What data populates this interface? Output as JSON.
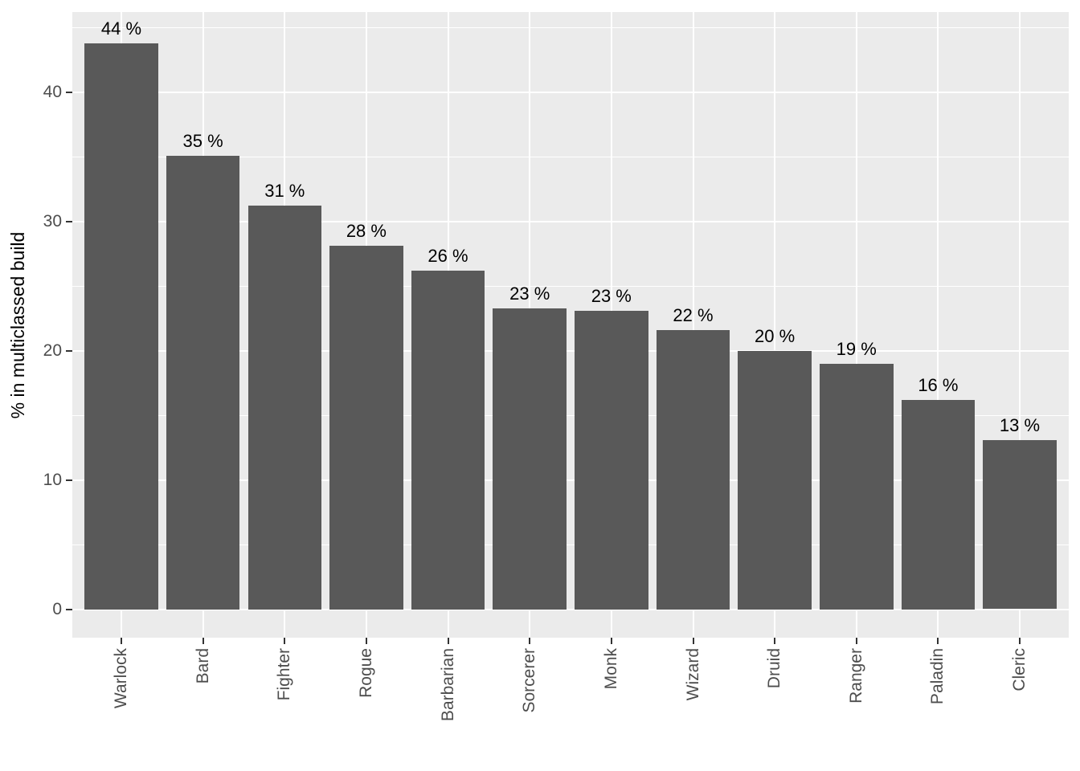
{
  "chart_data": {
    "type": "bar",
    "title": "",
    "categories": [
      "Warlock",
      "Bard",
      "Fighter",
      "Rogue",
      "Barbarian",
      "Sorcerer",
      "Monk",
      "Wizard",
      "Druid",
      "Ranger",
      "Paladin",
      "Cleric"
    ],
    "values": [
      43.8,
      35.1,
      31.2,
      28.1,
      26.2,
      23.3,
      23.1,
      21.6,
      20.0,
      19.0,
      16.2,
      13.1
    ],
    "bar_labels": [
      "44 %",
      "35 %",
      "31 %",
      "28 %",
      "26 %",
      "23 %",
      "23 %",
      "22 %",
      "20 %",
      "19 %",
      "16 %",
      "13 %"
    ],
    "xlabel": "",
    "ylabel": "% in multiclassed build",
    "y_ticks": [
      0,
      10,
      20,
      30,
      40
    ],
    "y_minor_gridlines": [
      5,
      15,
      25,
      35,
      45
    ],
    "ylim": [
      -2.2,
      46.2
    ],
    "x_domain": [
      0.4,
      12.6
    ],
    "bar_width_units": 0.9,
    "grid": true,
    "legend_position": "none",
    "style": {
      "panel_background": "#EBEBEB",
      "grid_color": "#FFFFFF",
      "bar_fill": "#595959",
      "tick_mark_color": "#333333",
      "tick_label_color": "#4D4D4D",
      "axis_title_color": "#000000",
      "bar_label_color": "#000000",
      "figure_background": "#FFFFFF"
    }
  }
}
